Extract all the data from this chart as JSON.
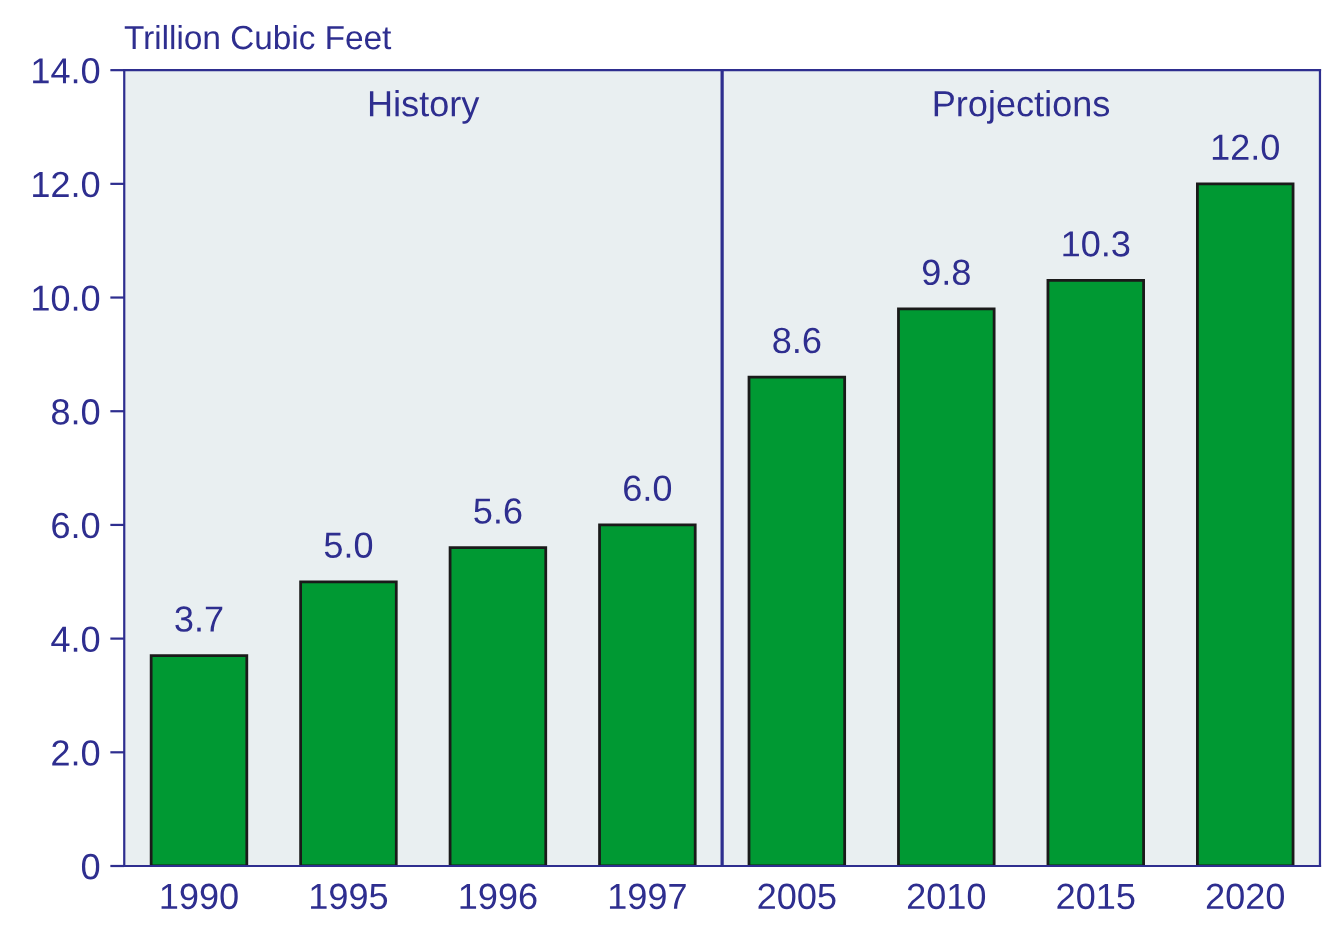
{
  "chart_data": {
    "type": "bar",
    "ylabel": "Trillion Cubic Feet",
    "categories": [
      "1990",
      "1995",
      "1996",
      "1997",
      "2005",
      "2010",
      "2015",
      "2020"
    ],
    "values": [
      3.7,
      5.0,
      5.6,
      6.0,
      8.6,
      9.8,
      10.3,
      12.0
    ],
    "value_labels": [
      "3.7",
      "5.0",
      "5.6",
      "6.0",
      "8.6",
      "9.8",
      "10.3",
      "12.0"
    ],
    "color": "#009933",
    "ylim": [
      0,
      14
    ],
    "yticks": [
      0,
      {
        "value": 2,
        "label": "2.0"
      },
      {
        "value": 4,
        "label": "4.0"
      },
      {
        "value": 6,
        "label": "6.0"
      },
      {
        "value": 8,
        "label": "8.0"
      },
      {
        "value": 10,
        "label": "10.0"
      },
      {
        "value": 12,
        "label": "12.0"
      },
      {
        "value": 14,
        "label": "14.0"
      }
    ],
    "bands": [
      {
        "axis": "x",
        "from": "1990",
        "to": "1997",
        "label": "History",
        "color": "#e9eff1"
      },
      {
        "axis": "x",
        "from": "2005",
        "to": "2020",
        "label": "Projections",
        "color": "#e9eff1"
      }
    ],
    "grid": false,
    "legend": false
  }
}
